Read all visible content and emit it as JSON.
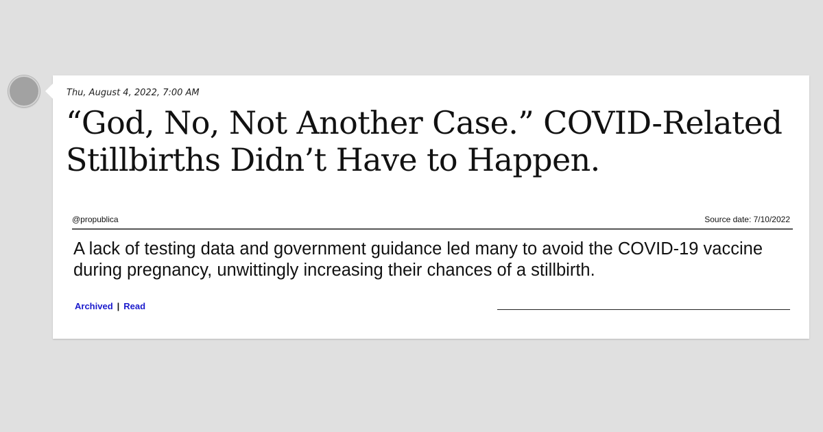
{
  "post": {
    "timestamp": "Thu, August 4, 2022, 7:00 AM",
    "headline": "“God, No, Not Another Case.” COVID-Related Stillbirths Didn’t Have to Happen.",
    "handle": "@propublica",
    "source_date": "Source date: 7/10/2022",
    "summary": "A lack of testing data and government guidance led many to avoid the COVID-19 vaccine during pregnancy, unwittingly increasing their chances of a stillbirth."
  },
  "links": {
    "archived": "Archived",
    "separator": "|",
    "read": "Read"
  },
  "colors": {
    "background": "#e0e0e0",
    "card": "#ffffff",
    "link": "#1a1acc",
    "avatar": "#a2a2a2"
  }
}
